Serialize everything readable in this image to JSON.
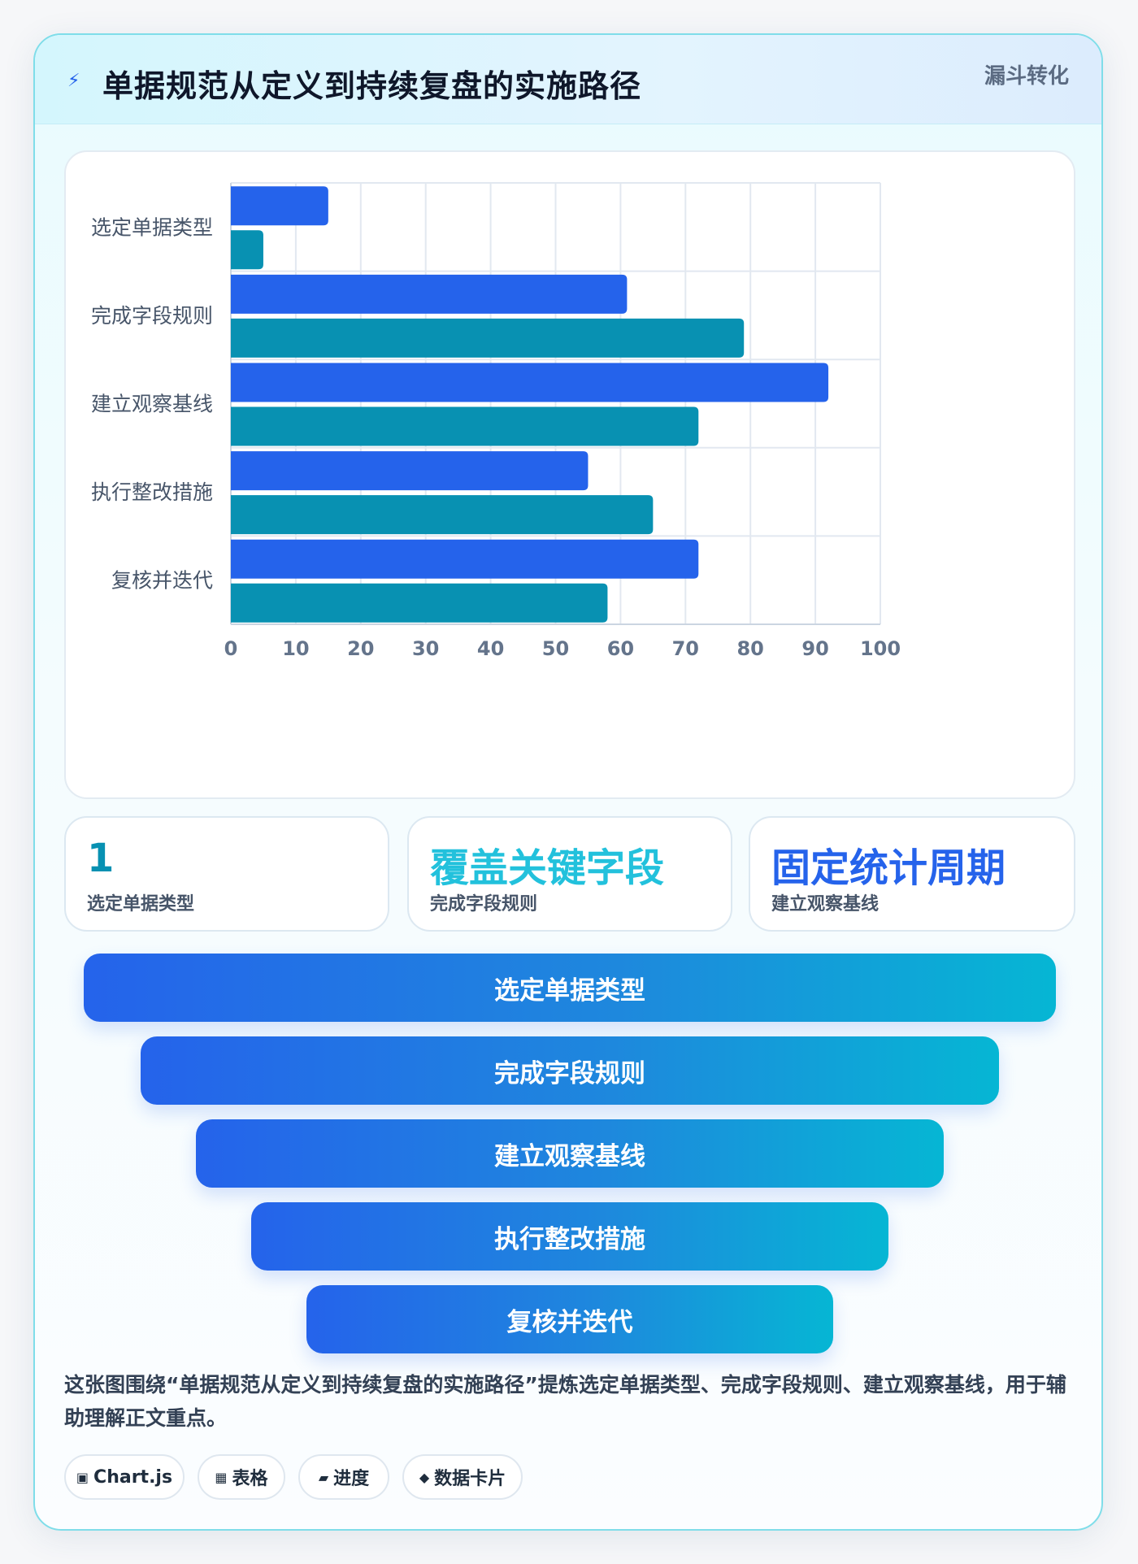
{
  "header": {
    "icon": "lightning-icon",
    "title": "单据规范从定义到持续复盘的实施路径",
    "tag": "漏斗转化"
  },
  "chart_data": {
    "type": "bar",
    "orientation": "horizontal",
    "categories": [
      "选定单据类型",
      "完成字段规则",
      "建立观察基线",
      "执行整改措施",
      "复核并迭代"
    ],
    "series": [
      {
        "values": [
          15,
          61,
          92,
          55,
          72
        ],
        "color": "#2563eb"
      },
      {
        "values": [
          5,
          79,
          72,
          65,
          58
        ],
        "color": "#0891b2"
      }
    ],
    "xlim": [
      0,
      100
    ],
    "xticks": [
      0,
      10,
      20,
      30,
      40,
      50,
      60,
      70,
      80,
      90,
      100
    ],
    "grid": true,
    "legend": "none"
  },
  "stats": [
    {
      "value": "1",
      "label": "选定单据类型",
      "color": "#0891b2"
    },
    {
      "value": "覆盖关键字段",
      "label": "完成字段规则",
      "color": "#22c1dc"
    },
    {
      "value": "固定统计周期",
      "label": "建立观察基线",
      "color": "#2563eb"
    }
  ],
  "funnel": [
    "选定单据类型",
    "完成字段规则",
    "建立观察基线",
    "执行整改措施",
    "复核并迭代"
  ],
  "description": "这张图围绕“单据规范从定义到持续复盘的实施路径”提炼选定单据类型、完成字段规则、建立观察基线，用于辅助理解正文重点。",
  "chips": [
    {
      "icon": "chart-icon",
      "glyph": "▣",
      "label": "Chart.js"
    },
    {
      "icon": "table-icon",
      "glyph": "▦",
      "label": "表格"
    },
    {
      "icon": "progress-icon",
      "glyph": "▰",
      "label": "进度"
    },
    {
      "icon": "diamond-icon",
      "glyph": "◆",
      "label": "数据卡片"
    }
  ]
}
